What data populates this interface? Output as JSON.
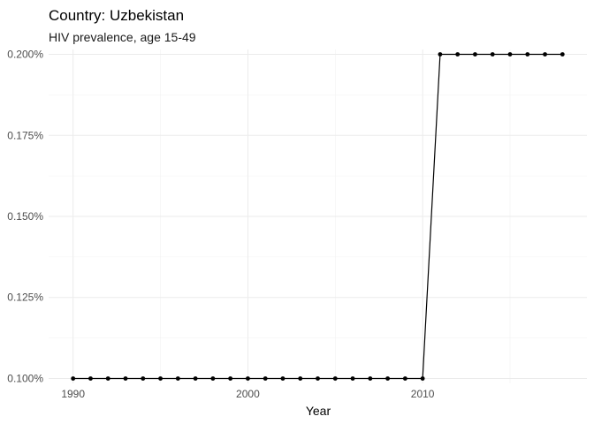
{
  "chart_data": {
    "type": "line",
    "title": "Country: Uzbekistan",
    "subtitle": "HIV prevalence, age 15-49",
    "xlabel": "Year",
    "ylabel": "",
    "xlim": [
      1988.6,
      2019.4
    ],
    "ylim": [
      0.0985,
      0.2015
    ],
    "x_ticks": [
      1990,
      2000,
      2010
    ],
    "x_minor_ticks": [
      1995,
      2005,
      2015
    ],
    "y_ticks": [
      0.1,
      0.125,
      0.15,
      0.175,
      0.2
    ],
    "y_tick_labels": [
      "0.100%",
      "0.125%",
      "0.150%",
      "0.175%",
      "0.200%"
    ],
    "y_minor_ticks": [
      0.1125,
      0.1375,
      0.1625,
      0.1875
    ],
    "grid": true,
    "legend": "none",
    "color": "#000000",
    "series": [
      {
        "x": [
          1990,
          1991,
          1992,
          1993,
          1994,
          1995,
          1996,
          1997,
          1998,
          1999,
          2000,
          2001,
          2002,
          2003,
          2004,
          2005,
          2006,
          2007,
          2008,
          2009,
          2010,
          2011,
          2012,
          2013,
          2014,
          2015,
          2016,
          2017,
          2018
        ],
        "values": [
          0.1,
          0.1,
          0.1,
          0.1,
          0.1,
          0.1,
          0.1,
          0.1,
          0.1,
          0.1,
          0.1,
          0.1,
          0.1,
          0.1,
          0.1,
          0.1,
          0.1,
          0.1,
          0.1,
          0.1,
          0.1,
          0.2,
          0.2,
          0.2,
          0.2,
          0.2,
          0.2,
          0.2,
          0.2
        ]
      }
    ]
  }
}
